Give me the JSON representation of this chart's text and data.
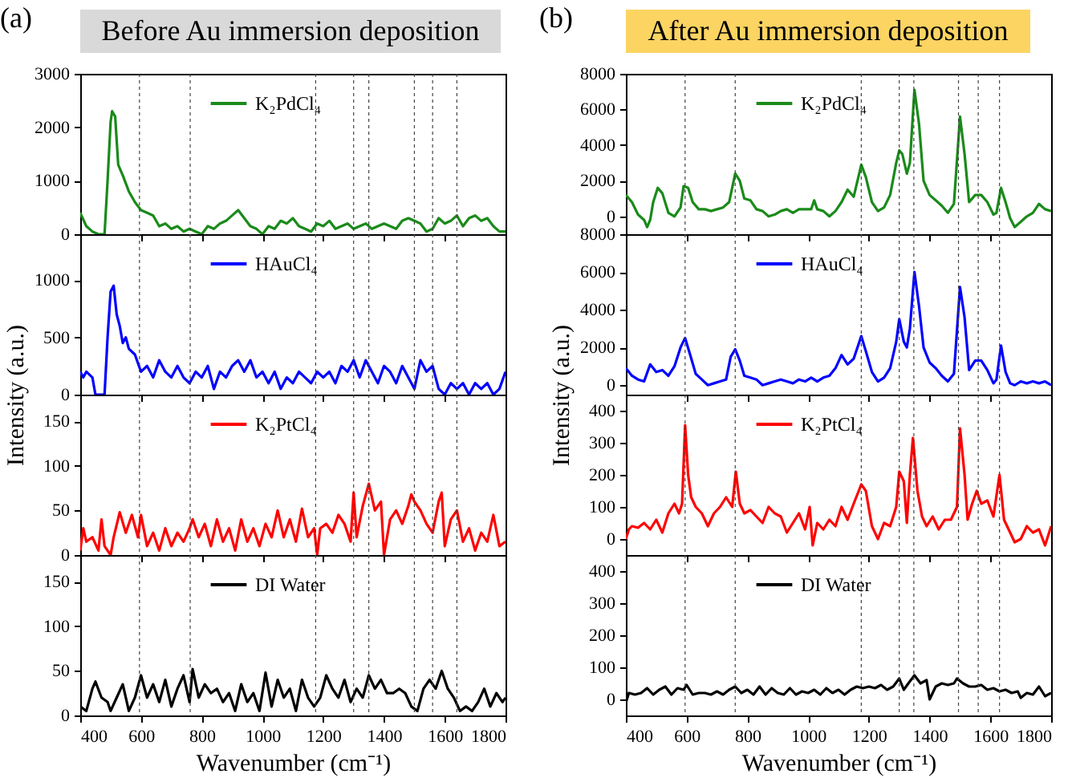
{
  "chart_data": [
    {
      "type": "line",
      "title": "Before Au immersion deposition",
      "annotations": [
        "(a)"
      ],
      "xlim": [
        400,
        1800
      ],
      "xticks": [
        400,
        600,
        800,
        1000,
        1200,
        1400,
        1600,
        1800
      ],
      "ylim": [
        0,
        3000
      ],
      "yticks": [
        0,
        1000,
        2000,
        3000
      ],
      "tick_labels": "y",
      "grid": false,
      "legend": "top",
      "ref_lines": [
        {
          "axis": "x",
          "value": 595,
          "line_style": "dotted"
        },
        {
          "axis": "x",
          "value": 762,
          "line_style": "dotted"
        },
        {
          "axis": "x",
          "value": 1175,
          "line_style": "dotted"
        },
        {
          "axis": "x",
          "value": 1300,
          "line_style": "dotted"
        },
        {
          "axis": "x",
          "value": 1350,
          "line_style": "dotted"
        },
        {
          "axis": "x",
          "value": 1500,
          "line_style": "dotted"
        },
        {
          "axis": "x",
          "value": 1560,
          "line_style": "dotted"
        },
        {
          "axis": "x",
          "value": 1640,
          "line_style": "dotted"
        }
      ],
      "series": [
        {
          "name": "K₂PdCl₄",
          "color": "#1a8a1a",
          "x": [
            400,
            420,
            440,
            460,
            470,
            480,
            490,
            500,
            505,
            515,
            525,
            540,
            560,
            580,
            600,
            620,
            640,
            660,
            680,
            700,
            720,
            740,
            760,
            780,
            800,
            820,
            840,
            860,
            880,
            900,
            920,
            940,
            960,
            980,
            1000,
            1020,
            1040,
            1060,
            1080,
            1100,
            1120,
            1140,
            1160,
            1180,
            1200,
            1220,
            1240,
            1260,
            1280,
            1300,
            1320,
            1340,
            1360,
            1380,
            1400,
            1420,
            1440,
            1460,
            1480,
            1500,
            1520,
            1540,
            1560,
            1580,
            1600,
            1620,
            1640,
            1660,
            1680,
            1700,
            1720,
            1740,
            1760,
            1780,
            1800
          ],
          "values": [
            400,
            150,
            50,
            0,
            0,
            0,
            1000,
            2100,
            2300,
            2200,
            1300,
            1100,
            800,
            600,
            450,
            400,
            350,
            150,
            200,
            100,
            150,
            50,
            100,
            50,
            0,
            150,
            100,
            200,
            250,
            350,
            450,
            300,
            150,
            100,
            0,
            150,
            100,
            250,
            200,
            300,
            150,
            100,
            50,
            200,
            150,
            250,
            100,
            150,
            200,
            100,
            150,
            200,
            100,
            150,
            200,
            150,
            100,
            250,
            300,
            250,
            200,
            50,
            100,
            300,
            200,
            250,
            350,
            150,
            300,
            350,
            250,
            300,
            150,
            50,
            50
          ]
        }
      ]
    },
    {
      "type": "line",
      "xlim": [
        400,
        1800
      ],
      "xticks": [
        400,
        600,
        800,
        1000,
        1200,
        1400,
        1600,
        1800
      ],
      "ylim": [
        0,
        1400
      ],
      "yticks": [
        0,
        500,
        1000
      ],
      "ylabel": "Intensity (a.u.)",
      "tick_labels": "y",
      "grid": false,
      "legend": "top",
      "ref_lines": [
        {
          "axis": "x",
          "value": 595,
          "line_style": "dotted"
        },
        {
          "axis": "x",
          "value": 762,
          "line_style": "dotted"
        },
        {
          "axis": "x",
          "value": 1175,
          "line_style": "dotted"
        },
        {
          "axis": "x",
          "value": 1300,
          "line_style": "dotted"
        },
        {
          "axis": "x",
          "value": 1350,
          "line_style": "dotted"
        },
        {
          "axis": "x",
          "value": 1500,
          "line_style": "dotted"
        },
        {
          "axis": "x",
          "value": 1560,
          "line_style": "dotted"
        },
        {
          "axis": "x",
          "value": 1640,
          "line_style": "dotted"
        }
      ],
      "series": [
        {
          "name": "HAuCl₄",
          "color": "#0000ff",
          "x": [
            400,
            410,
            420,
            440,
            450,
            470,
            480,
            490,
            500,
            510,
            520,
            530,
            540,
            550,
            560,
            580,
            600,
            620,
            640,
            660,
            680,
            700,
            720,
            740,
            760,
            780,
            800,
            820,
            840,
            860,
            880,
            900,
            920,
            940,
            960,
            980,
            1000,
            1020,
            1040,
            1060,
            1080,
            1100,
            1120,
            1140,
            1160,
            1180,
            1200,
            1220,
            1240,
            1260,
            1280,
            1300,
            1320,
            1340,
            1360,
            1380,
            1400,
            1420,
            1440,
            1460,
            1480,
            1500,
            1520,
            1540,
            1560,
            1580,
            1600,
            1620,
            1640,
            1660,
            1680,
            1700,
            1720,
            1740,
            1760,
            1780,
            1800
          ],
          "values": [
            200,
            150,
            200,
            150,
            0,
            0,
            0,
            500,
            900,
            950,
            700,
            600,
            450,
            500,
            400,
            350,
            200,
            250,
            150,
            300,
            200,
            150,
            250,
            150,
            100,
            200,
            150,
            250,
            50,
            200,
            150,
            250,
            300,
            200,
            300,
            150,
            200,
            100,
            200,
            50,
            150,
            100,
            200,
            150,
            100,
            200,
            150,
            200,
            100,
            250,
            200,
            300,
            150,
            300,
            200,
            100,
            250,
            200,
            100,
            250,
            150,
            50,
            300,
            200,
            250,
            50,
            0,
            100,
            50,
            100,
            0,
            100,
            50,
            100,
            0,
            50,
            200
          ]
        }
      ]
    },
    {
      "type": "line",
      "xlim": [
        400,
        1800
      ],
      "xticks": [
        400,
        600,
        800,
        1000,
        1200,
        1400,
        1600,
        1800
      ],
      "ylim": [
        0,
        180
      ],
      "yticks": [
        0,
        50,
        100,
        150
      ],
      "tick_labels": "y",
      "grid": false,
      "legend": "top",
      "ref_lines": [
        {
          "axis": "x",
          "value": 595,
          "line_style": "dotted"
        },
        {
          "axis": "x",
          "value": 762,
          "line_style": "dotted"
        },
        {
          "axis": "x",
          "value": 1175,
          "line_style": "dotted"
        },
        {
          "axis": "x",
          "value": 1300,
          "line_style": "dotted"
        },
        {
          "axis": "x",
          "value": 1350,
          "line_style": "dotted"
        },
        {
          "axis": "x",
          "value": 1500,
          "line_style": "dotted"
        },
        {
          "axis": "x",
          "value": 1560,
          "line_style": "dotted"
        },
        {
          "axis": "x",
          "value": 1640,
          "line_style": "dotted"
        }
      ],
      "series": [
        {
          "name": "K₂PtCl₄",
          "color": "#ff0000",
          "x": [
            400,
            410,
            420,
            440,
            460,
            470,
            480,
            500,
            510,
            530,
            550,
            570,
            590,
            600,
            620,
            640,
            660,
            680,
            700,
            720,
            740,
            760,
            770,
            790,
            810,
            830,
            850,
            870,
            890,
            910,
            930,
            950,
            970,
            990,
            1010,
            1030,
            1050,
            1070,
            1090,
            1110,
            1130,
            1150,
            1170,
            1180,
            1190,
            1210,
            1230,
            1250,
            1270,
            1290,
            1300,
            1310,
            1330,
            1350,
            1370,
            1390,
            1400,
            1420,
            1440,
            1460,
            1480,
            1490,
            1500,
            1520,
            1540,
            1560,
            1580,
            1590,
            1600,
            1620,
            1640,
            1660,
            1680,
            1700,
            1720,
            1740,
            1760,
            1780,
            1800
          ],
          "values": [
            5,
            30,
            15,
            20,
            5,
            40,
            10,
            0,
            20,
            48,
            25,
            45,
            20,
            45,
            10,
            25,
            5,
            30,
            10,
            25,
            15,
            30,
            40,
            20,
            35,
            10,
            40,
            15,
            30,
            5,
            40,
            15,
            30,
            10,
            35,
            20,
            50,
            20,
            40,
            15,
            52,
            20,
            30,
            0,
            30,
            35,
            25,
            45,
            35,
            15,
            70,
            20,
            55,
            80,
            50,
            60,
            0,
            40,
            50,
            35,
            55,
            68,
            60,
            50,
            35,
            25,
            60,
            70,
            10,
            40,
            50,
            15,
            30,
            5,
            25,
            15,
            45,
            10,
            15
          ]
        }
      ]
    },
    {
      "type": "line",
      "xlim": [
        400,
        1800
      ],
      "xticks": [
        400,
        600,
        800,
        1000,
        1200,
        1400,
        1600,
        1800
      ],
      "ylim": [
        0,
        180
      ],
      "yticks": [
        0,
        50,
        100,
        150
      ],
      "xlabel": "Wavenumber (cm⁻¹)",
      "grid": false,
      "legend": "top",
      "ref_lines": [
        {
          "axis": "x",
          "value": 595,
          "line_style": "dotted"
        },
        {
          "axis": "x",
          "value": 762,
          "line_style": "dotted"
        },
        {
          "axis": "x",
          "value": 1175,
          "line_style": "dotted"
        },
        {
          "axis": "x",
          "value": 1300,
          "line_style": "dotted"
        },
        {
          "axis": "x",
          "value": 1350,
          "line_style": "dotted"
        },
        {
          "axis": "x",
          "value": 1500,
          "line_style": "dotted"
        },
        {
          "axis": "x",
          "value": 1560,
          "line_style": "dotted"
        },
        {
          "axis": "x",
          "value": 1640,
          "line_style": "dotted"
        }
      ],
      "series": [
        {
          "name": "DI Water",
          "color": "#000000",
          "x": [
            400,
            420,
            440,
            450,
            470,
            490,
            500,
            520,
            540,
            560,
            580,
            600,
            620,
            640,
            660,
            680,
            700,
            720,
            740,
            760,
            770,
            790,
            810,
            830,
            850,
            870,
            890,
            910,
            930,
            950,
            970,
            990,
            1010,
            1030,
            1050,
            1070,
            1090,
            1110,
            1130,
            1150,
            1170,
            1190,
            1210,
            1230,
            1250,
            1270,
            1290,
            1310,
            1330,
            1350,
            1370,
            1390,
            1410,
            1430,
            1450,
            1470,
            1490,
            1510,
            1530,
            1550,
            1570,
            1590,
            1610,
            1630,
            1650,
            1670,
            1690,
            1710,
            1730,
            1750,
            1770,
            1790,
            1800
          ],
          "values": [
            10,
            5,
            30,
            38,
            20,
            15,
            5,
            20,
            35,
            5,
            20,
            45,
            20,
            35,
            15,
            40,
            10,
            30,
            45,
            15,
            52,
            20,
            35,
            25,
            30,
            15,
            25,
            5,
            35,
            15,
            25,
            5,
            48,
            10,
            40,
            20,
            30,
            5,
            40,
            20,
            10,
            20,
            45,
            30,
            20,
            40,
            15,
            30,
            20,
            45,
            30,
            40,
            25,
            25,
            30,
            25,
            10,
            5,
            30,
            40,
            30,
            50,
            30,
            20,
            5,
            10,
            5,
            15,
            30,
            10,
            25,
            15,
            20
          ]
        }
      ]
    },
    {
      "type": "line",
      "title": "After Au immersion deposition",
      "annotations": [
        "(b)"
      ],
      "xlim": [
        400,
        1800
      ],
      "xticks": [
        400,
        600,
        800,
        1000,
        1200,
        1400,
        1600,
        1800
      ],
      "ylim": [
        -1000,
        8000
      ],
      "yticks": [
        0,
        2000,
        4000,
        6000,
        8000
      ],
      "tick_labels": "y",
      "grid": false,
      "legend": "top",
      "ref_lines": [
        {
          "axis": "x",
          "value": 595,
          "line_style": "dotted"
        },
        {
          "axis": "x",
          "value": 760,
          "line_style": "dotted"
        },
        {
          "axis": "x",
          "value": 1175,
          "line_style": "dotted"
        },
        {
          "axis": "x",
          "value": 1300,
          "line_style": "dotted"
        },
        {
          "axis": "x",
          "value": 1348,
          "line_style": "dotted"
        },
        {
          "axis": "x",
          "value": 1495,
          "line_style": "dotted"
        },
        {
          "axis": "x",
          "value": 1560,
          "line_style": "dotted"
        },
        {
          "axis": "x",
          "value": 1630,
          "line_style": "dotted"
        }
      ],
      "series": [
        {
          "name": "K₂PdCl₄",
          "color": "#1a8a1a",
          "x": [
            400,
            420,
            440,
            460,
            470,
            480,
            490,
            505,
            520,
            540,
            560,
            580,
            590,
            605,
            620,
            640,
            660,
            680,
            700,
            720,
            740,
            760,
            775,
            790,
            810,
            830,
            850,
            870,
            890,
            910,
            930,
            950,
            970,
            990,
            1010,
            1020,
            1030,
            1050,
            1070,
            1090,
            1110,
            1130,
            1150,
            1175,
            1190,
            1210,
            1230,
            1250,
            1270,
            1290,
            1300,
            1310,
            1325,
            1335,
            1350,
            1365,
            1380,
            1400,
            1420,
            1440,
            1460,
            1480,
            1500,
            1515,
            1530,
            1550,
            1570,
            1590,
            1610,
            1620,
            1635,
            1650,
            1665,
            1680,
            1700,
            1720,
            1740,
            1760,
            1780,
            1800
          ],
          "values": [
            1200,
            800,
            100,
            -200,
            -600,
            -200,
            800,
            1600,
            1300,
            200,
            0,
            500,
            1700,
            1600,
            800,
            400,
            400,
            300,
            400,
            500,
            800,
            2400,
            2000,
            1000,
            900,
            400,
            300,
            0,
            100,
            300,
            400,
            200,
            400,
            400,
            400,
            900,
            400,
            300,
            0,
            300,
            800,
            1500,
            1100,
            2900,
            2200,
            800,
            300,
            500,
            1200,
            3000,
            3700,
            3500,
            2400,
            3000,
            7100,
            5200,
            2000,
            1200,
            900,
            600,
            200,
            700,
            5600,
            3500,
            800,
            1200,
            1200,
            800,
            100,
            200,
            1600,
            800,
            -100,
            -600,
            -300,
            0,
            200,
            700,
            400,
            300
          ]
        }
      ]
    },
    {
      "type": "line",
      "xlim": [
        400,
        1800
      ],
      "xticks": [
        400,
        600,
        800,
        1000,
        1200,
        1400,
        1600,
        1800
      ],
      "ylim": [
        -500,
        8000
      ],
      "yticks": [
        0,
        2000,
        4000,
        6000,
        8000
      ],
      "ylabel": "Intensity (a.u.)",
      "tick_labels": "y",
      "grid": false,
      "legend": "top",
      "ref_lines": [
        {
          "axis": "x",
          "value": 595,
          "line_style": "dotted"
        },
        {
          "axis": "x",
          "value": 760,
          "line_style": "dotted"
        },
        {
          "axis": "x",
          "value": 1175,
          "line_style": "dotted"
        },
        {
          "axis": "x",
          "value": 1300,
          "line_style": "dotted"
        },
        {
          "axis": "x",
          "value": 1348,
          "line_style": "dotted"
        },
        {
          "axis": "x",
          "value": 1495,
          "line_style": "dotted"
        },
        {
          "axis": "x",
          "value": 1560,
          "line_style": "dotted"
        },
        {
          "axis": "x",
          "value": 1630,
          "line_style": "dotted"
        }
      ],
      "series": [
        {
          "name": "HAuCl₄",
          "color": "#0000ff",
          "x": [
            400,
            420,
            440,
            460,
            480,
            500,
            520,
            540,
            560,
            580,
            595,
            610,
            630,
            650,
            670,
            690,
            710,
            730,
            745,
            760,
            775,
            790,
            810,
            830,
            850,
            870,
            890,
            910,
            930,
            950,
            970,
            990,
            1010,
            1030,
            1050,
            1070,
            1090,
            1110,
            1130,
            1150,
            1175,
            1190,
            1210,
            1230,
            1250,
            1270,
            1290,
            1300,
            1315,
            1325,
            1335,
            1350,
            1365,
            1380,
            1400,
            1420,
            1440,
            1460,
            1480,
            1500,
            1515,
            1530,
            1550,
            1570,
            1590,
            1610,
            1620,
            1635,
            1650,
            1665,
            1680,
            1700,
            1720,
            1740,
            1760,
            1780,
            1800
          ],
          "values": [
            900,
            500,
            300,
            200,
            1100,
            700,
            800,
            500,
            1000,
            2000,
            2500,
            1700,
            600,
            300,
            0,
            100,
            200,
            300,
            1500,
            1900,
            1300,
            500,
            400,
            300,
            0,
            100,
            200,
            300,
            200,
            100,
            300,
            200,
            400,
            200,
            400,
            500,
            900,
            1600,
            1100,
            1400,
            2600,
            1800,
            700,
            200,
            400,
            900,
            2300,
            3500,
            2300,
            2000,
            3000,
            6000,
            4200,
            2000,
            1200,
            900,
            500,
            200,
            600,
            5200,
            3600,
            800,
            1300,
            1300,
            800,
            100,
            300,
            2100,
            700,
            100,
            0,
            200,
            100,
            200,
            100,
            200,
            0
          ]
        }
      ]
    },
    {
      "type": "line",
      "xlim": [
        400,
        1800
      ],
      "xticks": [
        400,
        600,
        800,
        1000,
        1200,
        1400,
        1600,
        1800
      ],
      "ylim": [
        -50,
        450
      ],
      "yticks": [
        0,
        100,
        200,
        300,
        400
      ],
      "tick_labels": "y",
      "grid": false,
      "legend": "top",
      "ref_lines": [
        {
          "axis": "x",
          "value": 595,
          "line_style": "dotted"
        },
        {
          "axis": "x",
          "value": 760,
          "line_style": "dotted"
        },
        {
          "axis": "x",
          "value": 1175,
          "line_style": "dotted"
        },
        {
          "axis": "x",
          "value": 1300,
          "line_style": "dotted"
        },
        {
          "axis": "x",
          "value": 1348,
          "line_style": "dotted"
        },
        {
          "axis": "x",
          "value": 1495,
          "line_style": "dotted"
        },
        {
          "axis": "x",
          "value": 1560,
          "line_style": "dotted"
        },
        {
          "axis": "x",
          "value": 1630,
          "line_style": "dotted"
        }
      ],
      "series": [
        {
          "name": "K₂PtCl₄",
          "color": "#ff0000",
          "x": [
            400,
            410,
            420,
            440,
            460,
            480,
            500,
            520,
            540,
            560,
            575,
            585,
            595,
            605,
            615,
            630,
            650,
            670,
            690,
            710,
            730,
            750,
            762,
            775,
            790,
            810,
            830,
            850,
            870,
            890,
            910,
            930,
            950,
            970,
            990,
            1005,
            1015,
            1030,
            1050,
            1070,
            1090,
            1110,
            1130,
            1150,
            1175,
            1190,
            1210,
            1230,
            1250,
            1270,
            1290,
            1300,
            1315,
            1325,
            1335,
            1345,
            1360,
            1375,
            1390,
            1410,
            1430,
            1450,
            1470,
            1490,
            1500,
            1515,
            1525,
            1540,
            1555,
            1570,
            1590,
            1610,
            1630,
            1645,
            1660,
            1680,
            1700,
            1720,
            1740,
            1760,
            1780,
            1800
          ],
          "values": [
            0,
            30,
            40,
            35,
            50,
            30,
            60,
            20,
            80,
            110,
            80,
            110,
            355,
            200,
            130,
            100,
            80,
            40,
            80,
            100,
            130,
            100,
            210,
            110,
            80,
            90,
            70,
            50,
            100,
            80,
            70,
            20,
            50,
            80,
            30,
            100,
            -20,
            50,
            30,
            60,
            40,
            100,
            60,
            110,
            170,
            150,
            40,
            0,
            50,
            40,
            100,
            210,
            180,
            50,
            200,
            315,
            150,
            70,
            40,
            70,
            30,
            60,
            60,
            100,
            345,
            200,
            60,
            110,
            150,
            110,
            120,
            70,
            200,
            60,
            30,
            -10,
            0,
            40,
            20,
            30,
            -20,
            40
          ]
        }
      ]
    },
    {
      "type": "line",
      "xlim": [
        400,
        1800
      ],
      "xticks": [
        400,
        600,
        800,
        1000,
        1200,
        1400,
        1600,
        1800
      ],
      "ylim": [
        -50,
        450
      ],
      "yticks": [
        0,
        100,
        200,
        300,
        400
      ],
      "xlabel": "Wavenumber (cm⁻¹)",
      "grid": false,
      "legend": "top",
      "ref_lines": [
        {
          "axis": "x",
          "value": 595,
          "line_style": "dotted"
        },
        {
          "axis": "x",
          "value": 760,
          "line_style": "dotted"
        },
        {
          "axis": "x",
          "value": 1175,
          "line_style": "dotted"
        },
        {
          "axis": "x",
          "value": 1300,
          "line_style": "dotted"
        },
        {
          "axis": "x",
          "value": 1348,
          "line_style": "dotted"
        },
        {
          "axis": "x",
          "value": 1495,
          "line_style": "dotted"
        },
        {
          "axis": "x",
          "value": 1560,
          "line_style": "dotted"
        },
        {
          "axis": "x",
          "value": 1630,
          "line_style": "dotted"
        }
      ],
      "series": [
        {
          "name": "DI Water",
          "color": "#000000",
          "x": [
            400,
            410,
            430,
            450,
            470,
            490,
            510,
            530,
            550,
            570,
            590,
            600,
            620,
            640,
            660,
            680,
            700,
            720,
            740,
            760,
            780,
            800,
            820,
            840,
            860,
            880,
            900,
            920,
            940,
            960,
            980,
            1000,
            1020,
            1040,
            1060,
            1080,
            1100,
            1120,
            1140,
            1160,
            1180,
            1200,
            1220,
            1240,
            1260,
            1280,
            1300,
            1315,
            1330,
            1350,
            1370,
            1390,
            1400,
            1420,
            1440,
            1460,
            1480,
            1490,
            1510,
            1530,
            1550,
            1570,
            1590,
            1610,
            1630,
            1650,
            1670,
            1690,
            1700,
            1720,
            1740,
            1760,
            1780,
            1800
          ],
          "values": [
            -10,
            20,
            15,
            20,
            35,
            15,
            30,
            40,
            15,
            35,
            30,
            45,
            15,
            20,
            20,
            15,
            25,
            15,
            30,
            40,
            20,
            30,
            15,
            40,
            15,
            35,
            20,
            15,
            35,
            15,
            25,
            20,
            30,
            15,
            35,
            20,
            30,
            15,
            30,
            40,
            35,
            40,
            35,
            45,
            30,
            40,
            65,
            30,
            50,
            75,
            50,
            60,
            0,
            40,
            50,
            45,
            50,
            65,
            50,
            40,
            40,
            45,
            30,
            35,
            25,
            30,
            20,
            25,
            5,
            20,
            15,
            40,
            10,
            20
          ]
        }
      ]
    }
  ]
}
